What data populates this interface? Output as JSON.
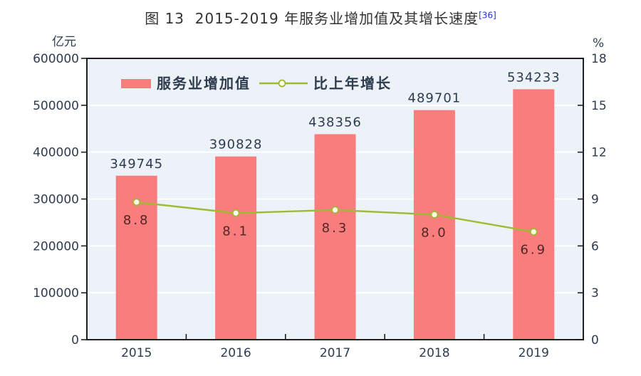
{
  "title": {
    "text": "图 13  2015-2019 年服务业增加值及其增长速度",
    "footnote": "[36]",
    "footnote_color": "#2836cc",
    "color": "#333333"
  },
  "chart_data": {
    "type": "bar",
    "title": "图 13 2015-2019 年服务业增加值及其增长速度",
    "categories": [
      "2015",
      "2016",
      "2017",
      "2018",
      "2019"
    ],
    "series": [
      {
        "name": "服务业增加值",
        "type": "bar",
        "axis": "left",
        "values": [
          349745,
          390828,
          438356,
          489701,
          534233
        ],
        "color": "#f97d7d"
      },
      {
        "name": "比上年增长",
        "type": "line",
        "axis": "right",
        "values": [
          8.8,
          8.1,
          8.3,
          8.0,
          6.9
        ],
        "color": "#9fbb33",
        "marker_fill": "#fcfdea"
      }
    ],
    "left_axis": {
      "unit": "亿元",
      "min": 0,
      "max": 600000,
      "ticks": [
        0,
        100000,
        200000,
        300000,
        400000,
        500000,
        600000
      ]
    },
    "right_axis": {
      "unit": "%",
      "min": 0,
      "max": 18,
      "ticks": [
        0,
        3,
        6,
        9,
        12,
        15,
        18
      ]
    },
    "grid": true,
    "legend_position": "top-left-inside",
    "plot_bg": "#ecf2f7",
    "gridline_color": "#ffffff",
    "border_color": "#1f1f1f",
    "axis_label_color": "#2e3c50",
    "bar_label_color": "#2e3c50",
    "line_label_color": "#4f2626"
  }
}
